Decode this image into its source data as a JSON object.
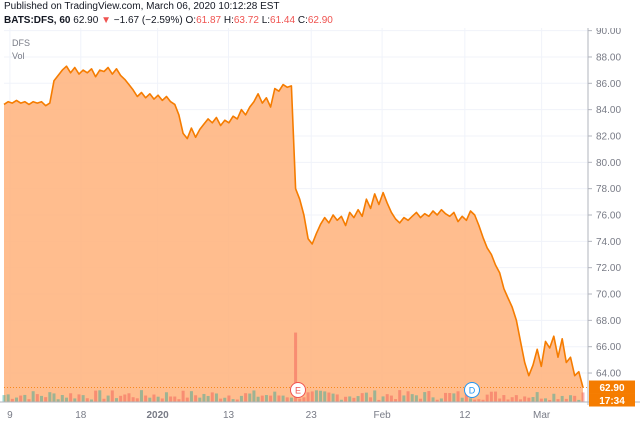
{
  "header": {
    "published": "Published on TradingView.com, March 06, 2020 10:12:28 EST",
    "symbol": "BATS:DFS, 60",
    "last": "62.90",
    "change_arrow": "▼",
    "change": "−1.67 (−2.59%)",
    "o_label": "O:",
    "o_value": "61.87",
    "h_label": "H:",
    "h_value": "63.72",
    "l_label": "L:",
    "l_value": "61.44",
    "c_label": "C:",
    "c_value": "62.90"
  },
  "pane_labels": {
    "ticker": "DFS",
    "volume": "Vol"
  },
  "price_tag": {
    "price": "62.90",
    "countdown": "17:34"
  },
  "markers": {
    "earnings": "E",
    "dividend": "D"
  },
  "colors": {
    "line": "#f57c00",
    "area": "#ffb27a",
    "up": "#26a69a",
    "down": "#ef5350",
    "tag": "#f57c00",
    "grid": "#f0f3fa",
    "axis_text": "#787b86",
    "earnings_marker": "#ef5350",
    "dividend_marker": "#2196f3"
  },
  "chart_data": {
    "type": "area",
    "x_axis_ticks": [
      "9",
      "18",
      "2020",
      "13",
      "23",
      "Feb",
      "12",
      "Mar"
    ],
    "y_ticks": [
      "64.00",
      "66.00",
      "68.00",
      "70.00",
      "72.00",
      "74.00",
      "76.00",
      "78.00",
      "80.00",
      "82.00",
      "84.00",
      "86.00",
      "88.00",
      "90.00"
    ],
    "ylim": [
      61.8,
      90.2
    ],
    "grid": true,
    "series": [
      {
        "values": [
          84.4,
          84.6,
          84.5,
          84.7,
          84.5,
          84.6,
          84.4,
          84.6,
          84.5,
          84.6,
          84.3,
          84.5,
          86.2,
          86.6,
          87.0,
          87.3,
          86.8,
          87.2,
          86.7,
          87.0,
          86.8,
          87.1,
          86.5,
          87.0,
          86.9,
          87.2,
          86.7,
          87.1,
          86.6,
          86.3,
          85.9,
          85.5,
          85.0,
          85.3,
          84.9,
          85.2,
          84.8,
          85.1,
          84.7,
          85.0,
          84.6,
          84.4,
          83.6,
          82.2,
          81.8,
          82.6,
          81.9,
          82.5,
          82.9,
          83.3,
          83.0,
          83.4,
          82.8,
          83.2,
          83.0,
          83.5,
          83.3,
          84.0,
          83.6,
          84.2,
          84.6,
          85.2,
          84.5,
          84.9,
          84.2,
          85.6,
          85.4,
          85.9,
          85.7,
          85.8,
          78.0,
          77.2,
          76.0,
          74.2,
          73.8,
          74.6,
          75.3,
          75.8,
          75.4,
          76.0,
          75.6,
          75.9,
          75.2,
          76.2,
          75.8,
          76.4,
          75.9,
          77.2,
          76.5,
          77.6,
          76.8,
          77.7,
          76.9,
          76.2,
          75.7,
          75.4,
          75.8,
          75.6,
          75.9,
          76.2,
          75.8,
          76.1,
          75.9,
          76.3,
          76.0,
          76.4,
          76.1,
          75.9,
          76.2,
          75.5,
          75.9,
          75.6,
          76.3,
          76.0,
          75.2,
          74.3,
          73.5,
          73.0,
          72.2,
          71.6,
          70.4,
          69.7,
          69.0,
          68.0,
          66.4,
          64.8,
          63.8,
          64.6,
          65.8,
          64.5,
          66.4,
          65.9,
          66.8,
          65.2,
          66.6,
          64.8,
          65.2,
          63.8,
          64.1,
          62.9
        ]
      }
    ]
  }
}
